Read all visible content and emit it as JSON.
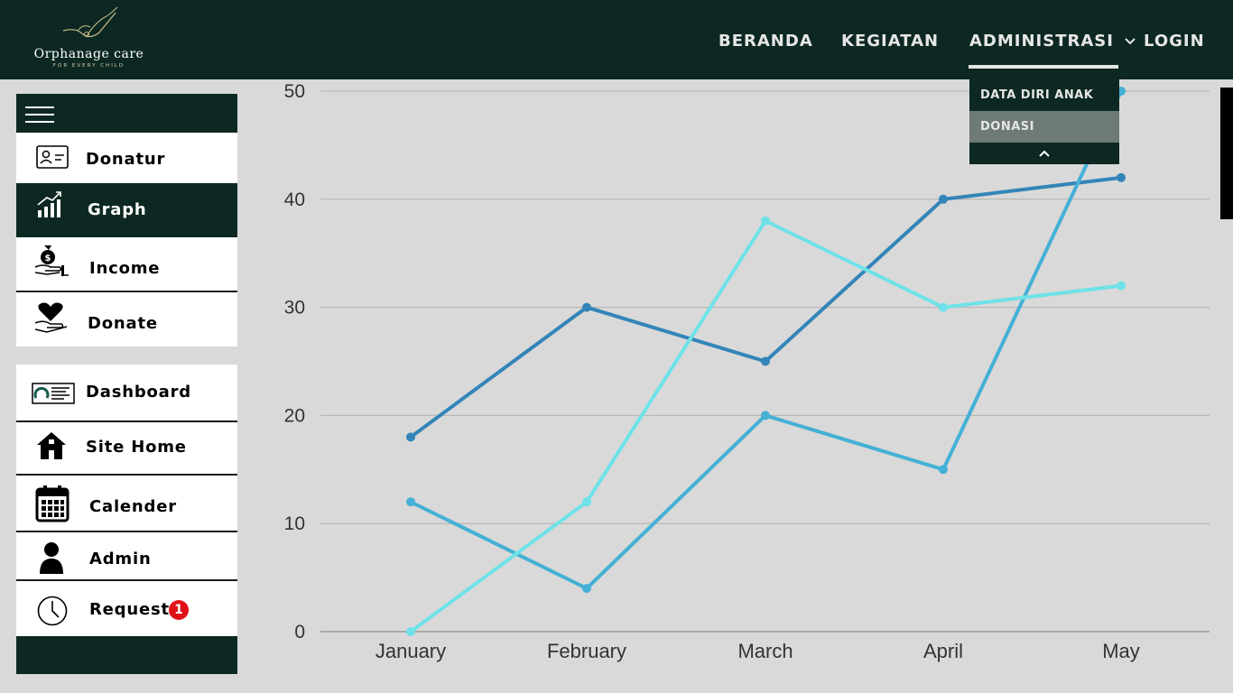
{
  "header": {
    "logo_title": "Orphanage care",
    "logo_subtitle": "FOR EVERY CHILD",
    "nav": [
      {
        "label": "BERANDA"
      },
      {
        "label": "KEGIATAN"
      },
      {
        "label": "ADMINISTRASI"
      },
      {
        "label": "LOGIN"
      }
    ]
  },
  "dropdown": {
    "items": [
      {
        "label": "DATA DIRI ANAK",
        "active": false
      },
      {
        "label": "DONASI",
        "active": true
      }
    ],
    "collapse_icon": "chevron-up-icon"
  },
  "sidebar": {
    "menu_icon": "hamburger-menu-icon",
    "group1": [
      {
        "label": "Donatur",
        "icon": "id-card-icon",
        "active": false
      },
      {
        "label": "Graph",
        "icon": "bar-chart-trend-icon",
        "active": true
      },
      {
        "label": "Income",
        "icon": "money-bag-hand-icon",
        "active": false
      },
      {
        "label": "Donate",
        "icon": "heart-hand-icon",
        "active": false
      }
    ],
    "group2": [
      {
        "label": "Dashboard",
        "icon": "dashboard-icon"
      },
      {
        "label": "Site Home",
        "icon": "home-icon"
      },
      {
        "label": "Calender",
        "icon": "calendar-icon"
      },
      {
        "label": "Admin",
        "icon": "user-icon"
      },
      {
        "label": "Request",
        "icon": "clock-icon",
        "badge": "1"
      }
    ]
  },
  "colors": {
    "header_bg": "#0d2822",
    "page_bg": "#d9d9d9",
    "series_1": "#3385b8",
    "series_2": "#44b0d6",
    "series_3": "#6ee2e8",
    "badge": "#e0101a"
  },
  "chart_data": {
    "type": "line",
    "categories": [
      "January",
      "February",
      "March",
      "April",
      "May"
    ],
    "series": [
      {
        "values": [
          18,
          30,
          25,
          40,
          42
        ]
      },
      {
        "values": [
          12,
          4,
          20,
          15,
          50
        ]
      },
      {
        "values": [
          0,
          12,
          38,
          30,
          32
        ]
      }
    ],
    "yticks": [
      "0",
      "10",
      "20",
      "30",
      "40",
      "50"
    ],
    "ylim": [
      0,
      50
    ],
    "grid": true,
    "legend": "none"
  }
}
